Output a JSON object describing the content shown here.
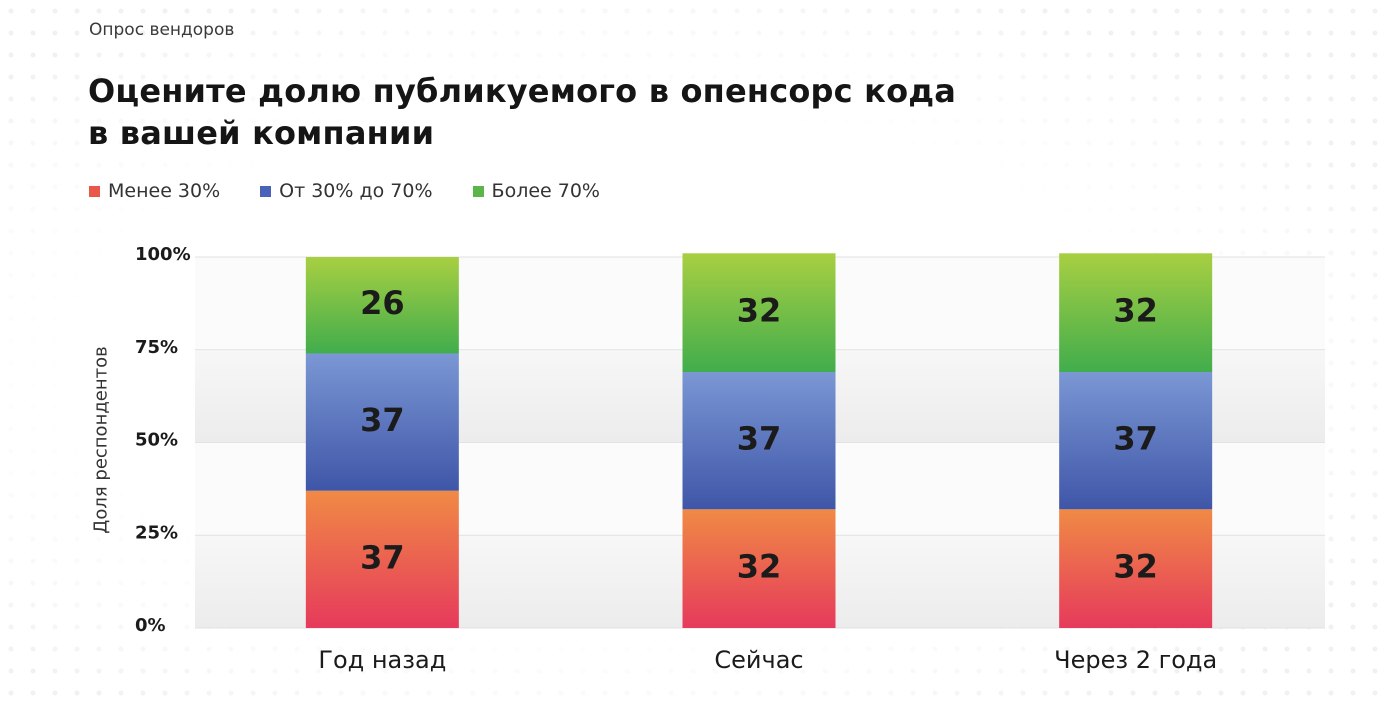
{
  "header": {
    "eyebrow": "Опрос вендоров",
    "title_line1": "Оцените долю публикуемого в опенсорс кода",
    "title_line2": "в вашей компании"
  },
  "chart_data": {
    "type": "bar",
    "stacked": true,
    "categories": [
      "Год назад",
      "Сейчас",
      "Через 2 года"
    ],
    "series": [
      {
        "name": "Менее 30%",
        "values": [
          37,
          32,
          32
        ],
        "color": "#e8574a",
        "gradient": [
          "#e63a5c",
          "#f08a45"
        ]
      },
      {
        "name": "От 30% до 70%",
        "values": [
          37,
          37,
          37
        ],
        "color": "#4a62b8",
        "gradient": [
          "#3f56a8",
          "#7b97d4"
        ]
      },
      {
        "name": "Более 70%",
        "values": [
          26,
          32,
          32
        ],
        "color": "#5cb548",
        "gradient": [
          "#41ad4c",
          "#a8cf42"
        ]
      }
    ],
    "ylabel": "Доля респондентов",
    "ylim": [
      0,
      100
    ],
    "yticks": [
      "0%",
      "25%",
      "50%",
      "75%",
      "100%"
    ],
    "ytick_values": [
      0,
      25,
      50,
      75,
      100
    ]
  }
}
